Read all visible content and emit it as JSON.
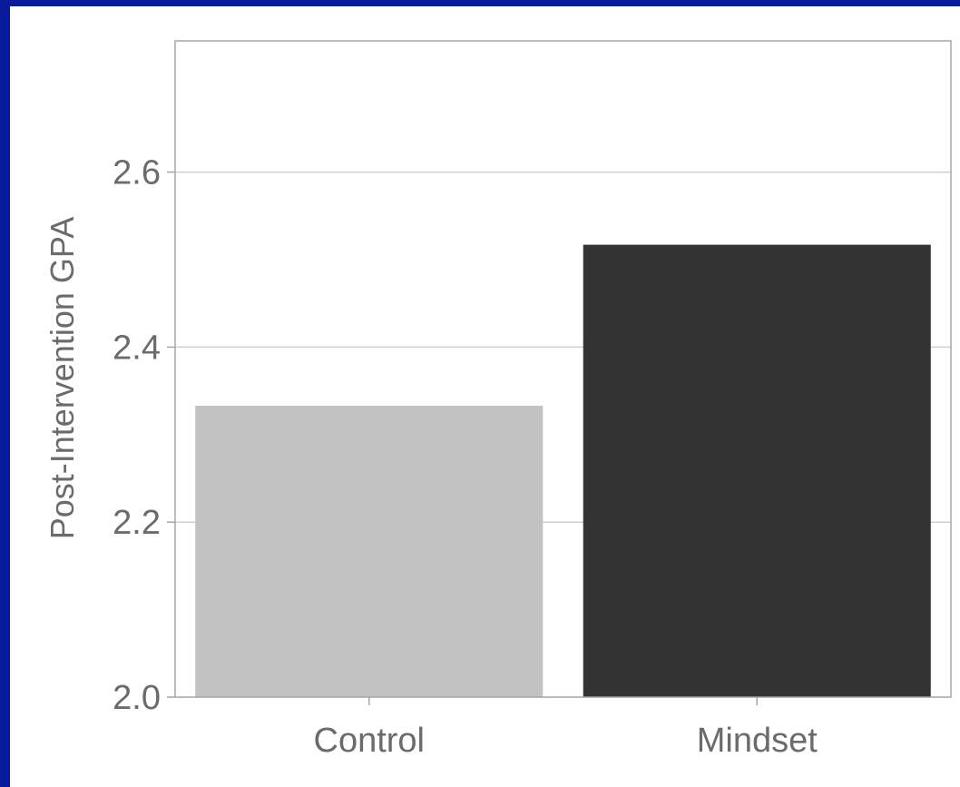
{
  "colors": {
    "slide_background": "#0a1a9c",
    "panel_background": "#ffffff",
    "grid": "#cfcfcf",
    "frame": "#a6a6a6",
    "text": "#6b6b6b"
  },
  "chart_data": {
    "type": "bar",
    "title": "",
    "xlabel": "",
    "ylabel": "Post-Intervention GPA",
    "categories": [
      "Control",
      "Mindset"
    ],
    "values": [
      2.333,
      2.517
    ],
    "bar_colors": [
      "#c2c2c2",
      "#333333"
    ],
    "ylim": [
      2.0,
      2.75
    ],
    "yticks": [
      2.0,
      2.2,
      2.4,
      2.6
    ],
    "ytick_labels": [
      "2.0",
      "2.2",
      "2.4",
      "2.6"
    ],
    "grid": true,
    "legend": "none"
  }
}
